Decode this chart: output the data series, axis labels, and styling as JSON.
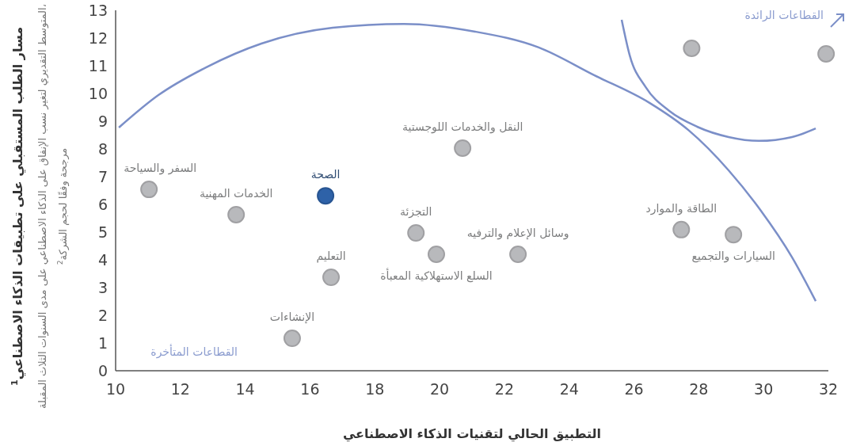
{
  "chart_data": {
    "type": "scatter",
    "xlabel": "التطبيق الحالي لتقنيات الذكاء الاصطناعي",
    "ylabel": "مسار الطلب المستقبلي على تطبيقات الذكاء الاصطناعي$^{1}$",
    "xlim": [
      10,
      32
    ],
    "xticks": [
      10,
      12,
      14,
      16,
      18,
      20,
      22,
      24,
      26,
      28,
      30,
      32
    ],
    "ylim": [
      0,
      13
    ],
    "yticks": [
      0,
      1,
      2,
      3,
      4,
      5,
      6,
      7,
      8,
      9,
      10,
      11,
      12,
      13
    ],
    "grid": false,
    "marker": "circle",
    "series": [
      {
        "x": [
          11.03,
          13.72,
          16.48,
          16.65,
          15.45,
          19.27,
          19.9,
          20.71,
          22.42,
          27.46,
          29.07,
          27.78,
          31.93
        ],
        "values": [
          6.54,
          5.63,
          6.31,
          3.37,
          1.17,
          4.97,
          4.2,
          8.03,
          4.2,
          5.09,
          4.91,
          11.63,
          11.43
        ],
        "colors": [
          "#b8b9bc",
          "#b8b9bc",
          "#2e62a8",
          "#b8b9bc",
          "#b8b9bc",
          "#b8b9bc",
          "#b8b9bc",
          "#b8b9bc",
          "#b8b9bc",
          "#b8b9bc",
          "#b8b9bc",
          "#b8b9bc",
          "#b8b9bc"
        ]
      },
      {
        "type": "line",
        "color": "#7b8fc8",
        "marker": "none",
        "line_style": "solid",
        "x": [
          10.1,
          11.32,
          12.79,
          14.5,
          16.7,
          18.9,
          21.1,
          23.06,
          24.77,
          26.48,
          27.7,
          28.92,
          29.9,
          30.88,
          31.61
        ],
        "values": [
          8.77,
          9.94,
          10.94,
          11.8,
          12.37,
          12.51,
          12.23,
          11.66,
          10.66,
          9.66,
          8.66,
          7.23,
          5.8,
          4.09,
          2.51
        ]
      },
      {
        "type": "line",
        "color": "#7b8fc8",
        "marker": "none",
        "line_style": "solid",
        "x": [
          25.62,
          25.87,
          26.36,
          27.09,
          27.95,
          28.92,
          29.85,
          30.88,
          31.61
        ],
        "values": [
          12.66,
          11.37,
          10.23,
          9.37,
          8.8,
          8.43,
          8.29,
          8.43,
          8.74
        ]
      }
    ],
    "annotations": [
      "المتوسط التقديري لتغير نسب الإنفاق على الذكاء الاصطناعي على مدى السنوات الثلاث المقبلة، مرجحة وفقًا لحجم الشركة$^{2}$",
      "القطاعات الرائدة",
      "القطاعات المتأخرة",
      {
        "text": "السفر والسياحة",
        "x": 11.03,
        "y": 6.54
      },
      {
        "text": "الخدمات المهنية",
        "x": 13.72,
        "y": 5.63
      },
      {
        "text": "الصحة",
        "x": 16.48,
        "y": 6.31
      },
      {
        "text": "التعليم",
        "x": 16.65,
        "y": 3.37
      },
      {
        "text": "الإنشاءات",
        "x": 15.45,
        "y": 1.17
      },
      {
        "text": "التجزئة",
        "x": 19.27,
        "y": 4.97
      },
      {
        "text": "السلع الاستهلاكية المعبأة",
        "x": 19.9,
        "y": 4.2
      },
      {
        "text": "النقل والخدمات اللوجستية",
        "x": 20.71,
        "y": 8.03
      },
      {
        "text": "وسائل الإعلام والترفيه",
        "x": 22.42,
        "y": 4.2
      },
      {
        "text": "الطاقة والموارد",
        "x": 27.46,
        "y": 5.09
      },
      {
        "text": "السيارات والتجميع",
        "x": 29.07,
        "y": 4.91
      }
    ]
  }
}
